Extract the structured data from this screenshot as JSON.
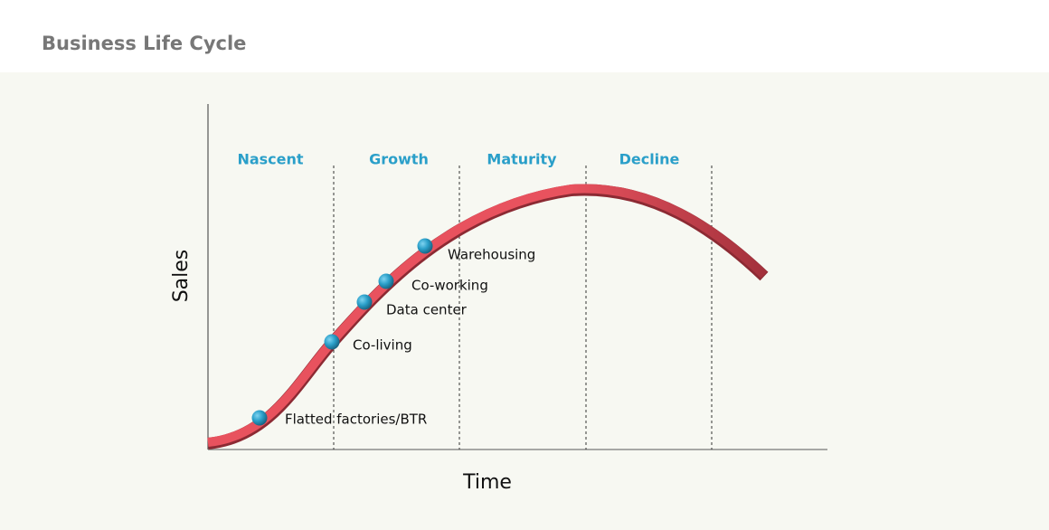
{
  "header": {
    "title": "Business Life Cycle"
  },
  "diagram": {
    "y_axis_label": "Sales",
    "x_axis_label": "Time",
    "stages": [
      "Nascent",
      "Growth",
      "Maturity",
      "Decline"
    ],
    "points": [
      {
        "label": "Flatted factories/BTR"
      },
      {
        "label": "Co-living"
      },
      {
        "label": "Data center"
      },
      {
        "label": "Co-working"
      },
      {
        "label": "Warehousing"
      }
    ]
  }
}
